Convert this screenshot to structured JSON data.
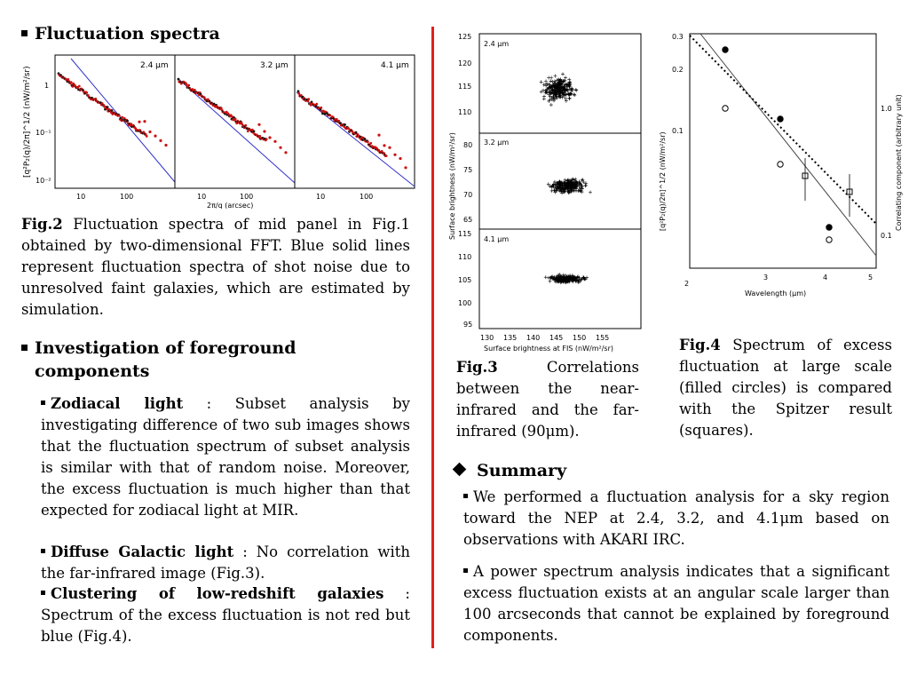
{
  "left": {
    "fluct_title": "Fluctuation spectra",
    "fig2": {
      "panels": [
        "2.4 μm",
        "3.2 μm",
        "4.1 μm"
      ],
      "ylabel": "[q²P₂(q)/2π]^1/2 (nW/m²/sr)",
      "xlabel": "2π/q (arcsec)",
      "yticks": [
        "1",
        "10⁻¹",
        "10⁻²"
      ],
      "xticks": [
        "10",
        "100"
      ]
    },
    "fig2_caption_label": "Fig.2",
    "fig2_caption_text": " Fluctuation spectra of mid panel in Fig.1 obtained by two-dimensional FFT. Blue solid lines represent fluctuation spectra of shot noise due to unresolved faint galaxies, which are estimated by simulation.",
    "invest_title_1": "Investigation of foreground",
    "invest_title_2": "components",
    "items": [
      {
        "term": "Zodiacal light",
        "text": " : Subset analysis by investigating difference of two sub images shows that the fluctuation spectrum of subset analysis is similar with that of random noise. Moreover, the excess fluctuation is much higher than that expected for zodiacal light at MIR."
      },
      {
        "term": "Diffuse Galactic light",
        "text": " : No correlation with the far-infrared image (Fig.3)."
      },
      {
        "term": "Clustering of low-redshift galaxies",
        "text": " : Spectrum of the excess fluctuation is not red but blue (Fig.4)."
      }
    ]
  },
  "fig3": {
    "panels": [
      {
        "label": "2.4 μm",
        "yticks": [
          "125",
          "120",
          "115",
          "110"
        ]
      },
      {
        "label": "3.2 μm",
        "yticks": [
          "80",
          "75",
          "70",
          "65"
        ]
      },
      {
        "label": "4.1 μm",
        "yticks": [
          "115",
          "110",
          "105",
          "100",
          "95"
        ]
      }
    ],
    "xticks": [
      "130",
      "135",
      "140",
      "145",
      "150",
      "155"
    ],
    "xlabel": "Surface brightness at FIS (nW/m²/sr)",
    "ylabel": "Surface brightness (nW/m²/sr)",
    "caption_label": "Fig.3",
    "caption_text": " Correlations between the near-infrared and the far-infrared (90μm)."
  },
  "fig4": {
    "yticks": [
      "0.3",
      "0.2",
      "0.1"
    ],
    "xticks": [
      "2",
      "3",
      "4",
      "5"
    ],
    "xlabel": "Wavelength (μm)",
    "ylabel": "[q²P₂(q)/2π]^1/2 (nW/m²/sr)",
    "y2label": "Correlating component (arbitrary unit)",
    "y2ticks": [
      "1.0",
      "0.1"
    ],
    "caption_label": "Fig.4",
    "caption_text": " Spectrum of excess fluctuation at large scale (filled circles) is compared with the Spitzer result (squares)."
  },
  "summary": {
    "title": "Summary",
    "items": [
      "We performed a fluctuation analysis for a sky region toward the NEP at 2.4, 3.2, and 4.1μm based on observations with AKARI IRC.",
      "A power spectrum analysis indicates that a significant excess fluctuation exists at an angular scale larger than 100 arcseconds that cannot be explained by foreground components."
    ]
  }
}
